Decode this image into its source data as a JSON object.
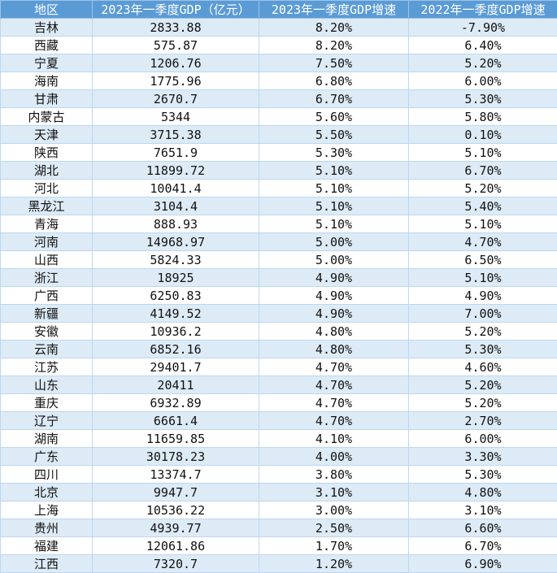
{
  "colors": {
    "header_bg": "#5b9bd5",
    "header_text": "#ffffff",
    "band": "#ddebf7"
  },
  "headers": [
    "地区",
    "2023年一季度GDP（亿元）",
    "2023年一季度GDP增速",
    "2022年一季度GDP增速"
  ],
  "rows": [
    [
      "吉林",
      "2833.88",
      "8.20%",
      "-7.90%"
    ],
    [
      "西藏",
      "575.87",
      "8.20%",
      "6.40%"
    ],
    [
      "宁夏",
      "1206.76",
      "7.50%",
      "5.20%"
    ],
    [
      "海南",
      "1775.96",
      "6.80%",
      "6.00%"
    ],
    [
      "甘肃",
      "2670.7",
      "6.70%",
      "5.30%"
    ],
    [
      "内蒙古",
      "5344",
      "5.60%",
      "5.80%"
    ],
    [
      "天津",
      "3715.38",
      "5.50%",
      "0.10%"
    ],
    [
      "陕西",
      "7651.9",
      "5.30%",
      "5.10%"
    ],
    [
      "湖北",
      "11899.72",
      "5.10%",
      "6.70%"
    ],
    [
      "河北",
      "10041.4",
      "5.10%",
      "5.20%"
    ],
    [
      "黑龙江",
      "3104.4",
      "5.10%",
      "5.40%"
    ],
    [
      "青海",
      "888.93",
      "5.10%",
      "5.10%"
    ],
    [
      "河南",
      "14968.97",
      "5.00%",
      "4.70%"
    ],
    [
      "山西",
      "5824.33",
      "5.00%",
      "6.50%"
    ],
    [
      "浙江",
      "18925",
      "4.90%",
      "5.10%"
    ],
    [
      "广西",
      "6250.83",
      "4.90%",
      "4.90%"
    ],
    [
      "新疆",
      "4149.52",
      "4.90%",
      "7.00%"
    ],
    [
      "安徽",
      "10936.2",
      "4.80%",
      "5.20%"
    ],
    [
      "云南",
      "6852.16",
      "4.80%",
      "5.30%"
    ],
    [
      "江苏",
      "29401.7",
      "4.70%",
      "4.60%"
    ],
    [
      "山东",
      "20411",
      "4.70%",
      "5.20%"
    ],
    [
      "重庆",
      "6932.89",
      "4.70%",
      "5.20%"
    ],
    [
      "辽宁",
      "6661.4",
      "4.70%",
      "2.70%"
    ],
    [
      "湖南",
      "11659.85",
      "4.10%",
      "6.00%"
    ],
    [
      "广东",
      "30178.23",
      "4.00%",
      "3.30%"
    ],
    [
      "四川",
      "13374.7",
      "3.80%",
      "5.30%"
    ],
    [
      "北京",
      "9947.7",
      "3.10%",
      "4.80%"
    ],
    [
      "上海",
      "10536.22",
      "3.00%",
      "3.10%"
    ],
    [
      "贵州",
      "4939.77",
      "2.50%",
      "6.60%"
    ],
    [
      "福建",
      "12061.86",
      "1.70%",
      "6.70%"
    ],
    [
      "江西",
      "7320.7",
      "1.20%",
      "6.90%"
    ]
  ]
}
